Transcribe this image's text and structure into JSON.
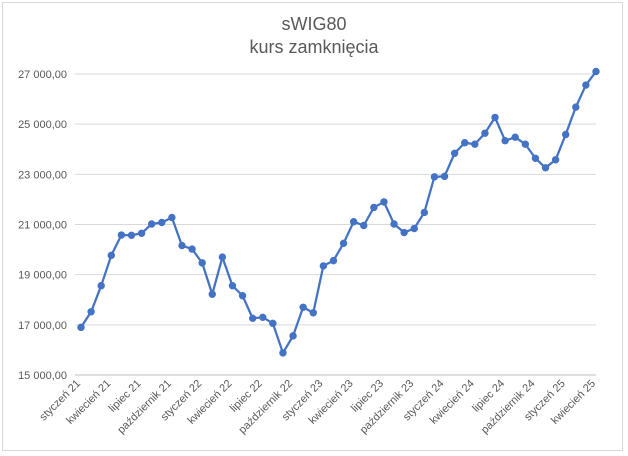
{
  "chart_data": {
    "type": "line",
    "title": "sWIG80",
    "subtitle": "kurs zamknięcia",
    "xlabel": "",
    "ylabel": "",
    "ylim": [
      15000,
      27000
    ],
    "y_ticks": [
      15000,
      17000,
      19000,
      21000,
      23000,
      25000,
      27000
    ],
    "y_tick_labels": [
      "15 000,00",
      "17 000,00",
      "19 000,00",
      "21 000,00",
      "23 000,00",
      "25 000,00",
      "27 000,00"
    ],
    "grid": "horizontal",
    "legend": "none",
    "color": "#4472c4",
    "x_tick_labels": [
      "styczeń 21",
      "kwiecień 21",
      "lipiec 21",
      "październik 21",
      "styczeń 22",
      "kwiecień 22",
      "lipiec 22",
      "październik 22",
      "styczeń 23",
      "kwiecień 23",
      "lipiec 23",
      "październik 23",
      "styczeń 24",
      "kwiecień 24",
      "lipiec 24",
      "październik 24",
      "styczeń 25",
      "kwiecień 25"
    ],
    "categories": [
      "styczeń 21",
      "luty 21",
      "marzec 21",
      "kwiecień 21",
      "maj 21",
      "czerwiec 21",
      "lipiec 21",
      "sierpień 21",
      "wrzesień 21",
      "październik 21",
      "listopad 21",
      "grudzień 21",
      "styczeń 22",
      "luty 22",
      "marzec 22",
      "kwiecień 22",
      "maj 22",
      "czerwiec 22",
      "lipiec 22",
      "sierpień 22",
      "wrzesień 22",
      "październik 22",
      "listopad 22",
      "grudzień 22",
      "styczeń 23",
      "luty 23",
      "marzec 23",
      "kwiecień 23",
      "maj 23",
      "czerwiec 23",
      "lipiec 23",
      "sierpień 23",
      "wrzesień 23",
      "październik 23",
      "listopad 23",
      "grudzień 23",
      "styczeń 24",
      "luty 24",
      "marzec 24",
      "kwiecień 24",
      "maj 24",
      "czerwiec 24",
      "lipiec 24",
      "sierpień 24",
      "wrzesień 24",
      "październik 24",
      "listopad 24",
      "grudzień 24",
      "styczeń 25",
      "luty 25",
      "marzec 25",
      "kwiecień 25"
    ],
    "values": [
      16900,
      17520,
      18560,
      19770,
      20580,
      20570,
      20650,
      21020,
      21080,
      21280,
      20160,
      20020,
      19470,
      18220,
      19700,
      18560,
      18160,
      17260,
      17300,
      17060,
      15880,
      16560,
      17700,
      17480,
      19350,
      19560,
      20250,
      21110,
      20960,
      21680,
      21900,
      21020,
      20680,
      20840,
      21480,
      22900,
      22920,
      23840,
      24260,
      24200,
      24640,
      25270,
      24340,
      24480,
      24200,
      23640,
      23260,
      23580,
      24590,
      25680,
      26560,
      27100
    ]
  }
}
